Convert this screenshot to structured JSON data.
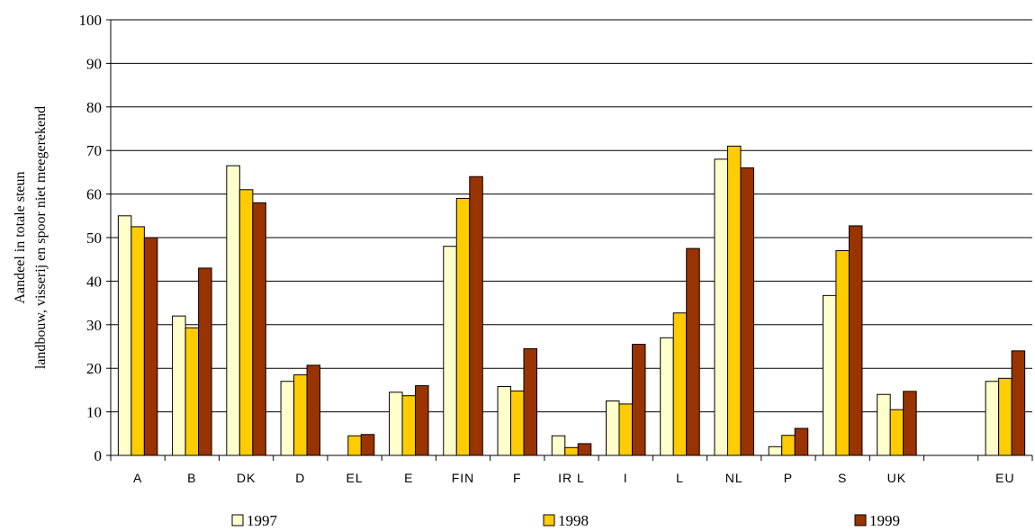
{
  "chart_data": {
    "type": "bar",
    "ylabel_lines": [
      "Aandeel in totale steun",
      "landbouw, visserij en spoor niet meegerekend"
    ],
    "ylim": [
      0,
      100
    ],
    "ytick_step": 10,
    "grid": true,
    "legend_position": "bottom",
    "categories": [
      "A",
      "B",
      "DK",
      "D",
      "EL",
      "E",
      "FIN",
      "F",
      "IRL",
      "I",
      "L",
      "NL",
      "P",
      "S",
      "UK",
      "",
      "EU"
    ],
    "category_labels": [
      "A",
      "B",
      "DK",
      "D",
      "EL",
      "E",
      "FIN",
      "F",
      "IR L",
      "I",
      "L",
      "NL",
      "P",
      "S",
      "UK",
      "",
      "EU"
    ],
    "series": [
      {
        "name": "1997",
        "color": "#FFFFCC",
        "values": [
          55,
          32,
          66.5,
          17,
          null,
          14.5,
          48,
          15.8,
          4.5,
          12.5,
          27,
          68,
          2,
          36.7,
          14,
          null,
          17
        ]
      },
      {
        "name": "1998",
        "color": "#FFCC00",
        "values": [
          52.5,
          29.3,
          61,
          18.5,
          4.5,
          13.7,
          59,
          14.8,
          1.8,
          11.8,
          32.7,
          71,
          4.6,
          47,
          10.5,
          null,
          17.7
        ]
      },
      {
        "name": "1999",
        "color": "#993300",
        "values": [
          50,
          43,
          58,
          20.7,
          4.8,
          16,
          64,
          24.5,
          2.7,
          25.5,
          47.5,
          66,
          6.2,
          52.7,
          14.7,
          null,
          24
        ]
      }
    ]
  }
}
